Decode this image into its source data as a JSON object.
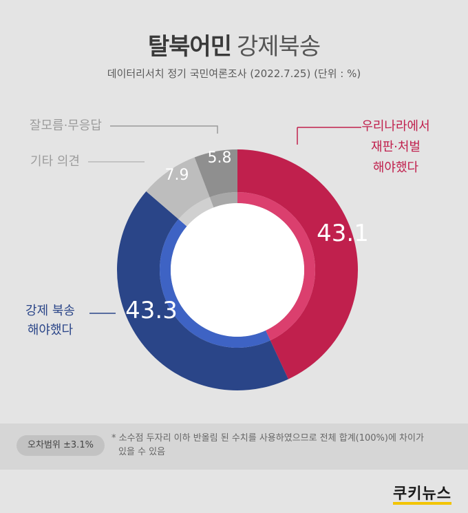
{
  "title": {
    "bold": "탈북어민",
    "light": "강제북송"
  },
  "subtitle": "데이터리서치 정기 국민여론조사 (2022.7.25)  (단위 : %)",
  "colors": {
    "red": "#c0204d",
    "blue": "#2a4588",
    "gray1": "#bdbdbd",
    "gray2": "#8f8f8f"
  },
  "chart_data": {
    "type": "pie",
    "unit": "%",
    "segments": [
      {
        "label_lines": [
          "우리나라에서",
          "재판·처벌",
          "해야했다"
        ],
        "value": 43.1,
        "value_label": "43.1",
        "color": "#c0204d",
        "inner": "#db3f6e"
      },
      {
        "label_lines": [
          "강제 북송",
          "해야했다"
        ],
        "value": 43.3,
        "value_label": "43.3",
        "color": "#2a4588",
        "inner": "#3e63c4"
      },
      {
        "label_lines": [
          "기타 의견"
        ],
        "value": 7.9,
        "value_label": "7.9",
        "color": "#bdbdbd",
        "inner": "#d0d0d0"
      },
      {
        "label_lines": [
          "잘모름·무응답"
        ],
        "value": 5.8,
        "value_label": "5.8",
        "color": "#8f8f8f",
        "inner": "#a8a8a8"
      }
    ]
  },
  "footer": {
    "badge": "오차범위 ±3.1%",
    "note_line1": "* 소수점 두자리 이하 반올림 된 수치를 사용하였으므로 전체 합계(100%)에 차이가",
    "note_line2": "있을 수 있음"
  },
  "logo": "쿠키뉴스"
}
